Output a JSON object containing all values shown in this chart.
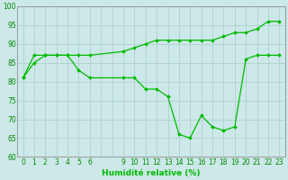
{
  "xlabel": "Humidité relative (%)",
  "background_color": "#cce8e8",
  "grid_color": "#aacccc",
  "line_color": "#00bb00",
  "line1_x": [
    0,
    1,
    2,
    3,
    4,
    5,
    6,
    9,
    10,
    11,
    12,
    13,
    14,
    15,
    16,
    17,
    18,
    19,
    20,
    21,
    22,
    23
  ],
  "line1_y": [
    81,
    85,
    87,
    87,
    87,
    83,
    81,
    81,
    81,
    78,
    78,
    76,
    66,
    65,
    71,
    68,
    67,
    68,
    86,
    87,
    87,
    87
  ],
  "line2_x": [
    0,
    1,
    2,
    3,
    4,
    5,
    6,
    9,
    10,
    11,
    12,
    13,
    14,
    15,
    16,
    17,
    18,
    19,
    20,
    21,
    22,
    23
  ],
  "line2_y": [
    81,
    87,
    87,
    87,
    87,
    87,
    87,
    88,
    89,
    90,
    91,
    91,
    91,
    91,
    91,
    91,
    92,
    93,
    93,
    94,
    96,
    96
  ],
  "ylim": [
    60,
    100
  ],
  "xlim": [
    -0.5,
    23.5
  ],
  "yticks": [
    60,
    65,
    70,
    75,
    80,
    85,
    90,
    95,
    100
  ],
  "xtick_positions": [
    0,
    1,
    2,
    3,
    4,
    5,
    6,
    9,
    10,
    11,
    12,
    13,
    14,
    15,
    16,
    17,
    18,
    19,
    20,
    21,
    22,
    23
  ],
  "xtick_labels": [
    "0",
    "1",
    "2",
    "3",
    "4",
    "5",
    "6",
    "9",
    "10",
    "11",
    "12",
    "13",
    "14",
    "15",
    "16",
    "17",
    "18",
    "19",
    "20",
    "21",
    "22",
    "23"
  ],
  "ytick_labels": [
    "60",
    "65",
    "70",
    "75",
    "80",
    "85",
    "90",
    "95",
    "100"
  ],
  "xlabel_color": "#00bb00",
  "xlabel_fontsize": 6.5,
  "tick_fontsize": 5.5,
  "tick_color": "#008800"
}
